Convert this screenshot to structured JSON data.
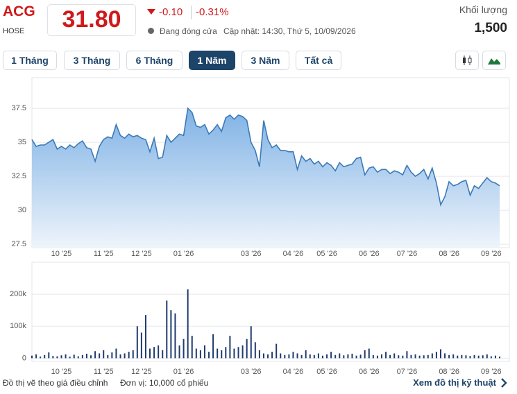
{
  "header": {
    "symbol": "ACG",
    "exchange": "HOSE",
    "price": "31.80",
    "change": "-0.10",
    "change_pct": "-0.31%",
    "status": "Đang đóng cửa",
    "updated": "Cập nhật: 14:30, Thứ 5, 10/09/2026",
    "volume_label": "Khối lượng",
    "volume": "1,500"
  },
  "ranges": [
    "1 Tháng",
    "3 Tháng",
    "6 Tháng",
    "1 Năm",
    "3 Năm",
    "Tất cả"
  ],
  "active_range": 3,
  "chart_data": [
    {
      "type": "area",
      "color": "#3b7ab8",
      "grid": true,
      "categories": [
        null,
        null,
        null,
        null,
        null,
        null,
        null,
        "10 '25",
        null,
        null,
        null,
        null,
        null,
        null,
        null,
        null,
        null,
        "11 '25",
        null,
        null,
        null,
        null,
        null,
        null,
        null,
        null,
        "12 '25",
        null,
        null,
        null,
        null,
        null,
        null,
        null,
        null,
        null,
        "01 '26",
        null,
        null,
        null,
        null,
        null,
        null,
        null,
        null,
        null,
        null,
        null,
        null,
        null,
        null,
        null,
        "03 '26",
        null,
        null,
        null,
        null,
        null,
        null,
        null,
        null,
        null,
        "04 '26",
        null,
        null,
        null,
        null,
        null,
        null,
        null,
        "05 '26",
        null,
        null,
        null,
        null,
        null,
        null,
        null,
        null,
        null,
        "06 '26",
        null,
        null,
        null,
        null,
        null,
        null,
        null,
        null,
        "07 '26",
        null,
        null,
        null,
        null,
        null,
        null,
        null,
        null,
        null,
        "08 '26",
        null,
        null,
        null,
        null,
        null,
        null,
        null,
        null,
        null,
        "09 '26",
        null,
        null
      ],
      "values": [
        35.2,
        34.7,
        34.8,
        34.8,
        35.0,
        35.2,
        34.5,
        34.7,
        34.5,
        34.8,
        34.6,
        34.9,
        35.1,
        34.6,
        34.5,
        33.6,
        34.7,
        35.2,
        35.4,
        35.3,
        36.3,
        35.5,
        35.3,
        35.6,
        35.4,
        35.5,
        35.3,
        35.2,
        34.3,
        35.3,
        33.8,
        33.9,
        35.5,
        35.0,
        35.3,
        35.6,
        35.5,
        37.5,
        37.2,
        36.2,
        36.1,
        36.3,
        35.6,
        35.9,
        36.3,
        35.8,
        36.8,
        37.0,
        36.7,
        37.0,
        36.9,
        36.6,
        35.0,
        34.4,
        33.2,
        36.6,
        35.2,
        34.6,
        34.8,
        34.4,
        34.4,
        34.3,
        34.3,
        33.0,
        34.0,
        33.6,
        33.8,
        33.4,
        33.6,
        33.2,
        33.5,
        33.3,
        32.9,
        33.5,
        33.2,
        33.3,
        33.4,
        33.8,
        33.9,
        32.6,
        33.1,
        33.2,
        32.8,
        33.0,
        33.0,
        32.7,
        32.9,
        32.8,
        32.6,
        33.3,
        32.8,
        32.5,
        32.7,
        33.0,
        32.3,
        33.1,
        32.0,
        30.4,
        31.0,
        32.1,
        31.8,
        31.9,
        32.1,
        32.2,
        31.1,
        31.8,
        31.6,
        32.0,
        32.4,
        32.1,
        32.0,
        31.8
      ],
      "ylim": [
        27.25,
        39.75
      ],
      "yticks": [
        27.5,
        30,
        32.5,
        35,
        37.5
      ]
    },
    {
      "type": "bar",
      "color": "#1f3a6e",
      "grid": true,
      "categories": [
        null,
        null,
        null,
        null,
        null,
        null,
        null,
        "10 '25",
        null,
        null,
        null,
        null,
        null,
        null,
        null,
        null,
        null,
        "11 '25",
        null,
        null,
        null,
        null,
        null,
        null,
        null,
        null,
        "12 '25",
        null,
        null,
        null,
        null,
        null,
        null,
        null,
        null,
        null,
        "01 '26",
        null,
        null,
        null,
        null,
        null,
        null,
        null,
        null,
        null,
        null,
        null,
        null,
        null,
        null,
        null,
        "03 '26",
        null,
        null,
        null,
        null,
        null,
        null,
        null,
        null,
        null,
        "04 '26",
        null,
        null,
        null,
        null,
        null,
        null,
        null,
        "05 '26",
        null,
        null,
        null,
        null,
        null,
        null,
        null,
        null,
        null,
        "06 '26",
        null,
        null,
        null,
        null,
        null,
        null,
        null,
        null,
        "07 '26",
        null,
        null,
        null,
        null,
        null,
        null,
        null,
        null,
        null,
        "08 '26",
        null,
        null,
        null,
        null,
        null,
        null,
        null,
        null,
        null,
        "09 '26",
        null,
        null
      ],
      "values": [
        8000,
        12000,
        5000,
        10000,
        18000,
        7000,
        6000,
        9000,
        12000,
        5000,
        11000,
        6000,
        10000,
        14000,
        9000,
        22000,
        15000,
        25000,
        10000,
        18000,
        30000,
        12000,
        15000,
        20000,
        25000,
        100000,
        80000,
        135000,
        30000,
        35000,
        40000,
        25000,
        180000,
        150000,
        140000,
        40000,
        60000,
        215000,
        70000,
        30000,
        25000,
        40000,
        20000,
        75000,
        30000,
        25000,
        35000,
        70000,
        30000,
        35000,
        40000,
        60000,
        100000,
        50000,
        25000,
        15000,
        12000,
        20000,
        45000,
        15000,
        10000,
        12000,
        20000,
        15000,
        10000,
        25000,
        12000,
        10000,
        15000,
        8000,
        12000,
        20000,
        10000,
        15000,
        9000,
        12000,
        14000,
        8000,
        11000,
        25000,
        30000,
        10000,
        8000,
        12000,
        20000,
        10000,
        15000,
        9000,
        8000,
        22000,
        10000,
        12000,
        8000,
        9000,
        10000,
        15000,
        20000,
        28000,
        15000,
        10000,
        12000,
        8000,
        10000,
        9000,
        7000,
        10000,
        8000,
        9000,
        12000,
        6000,
        8000,
        5000
      ],
      "ylim": [
        -10000,
        300000
      ],
      "yticks": [
        0,
        {
          "value": 100000,
          "label": "100k"
        },
        {
          "value": 200000,
          "label": "200k"
        }
      ]
    }
  ],
  "footer": {
    "note": "Đồ thị vẽ theo giá điều chỉnh",
    "unit": "Đơn vị: 10,000 cổ phiếu",
    "link": "Xem đồ thị kỹ thuật"
  }
}
